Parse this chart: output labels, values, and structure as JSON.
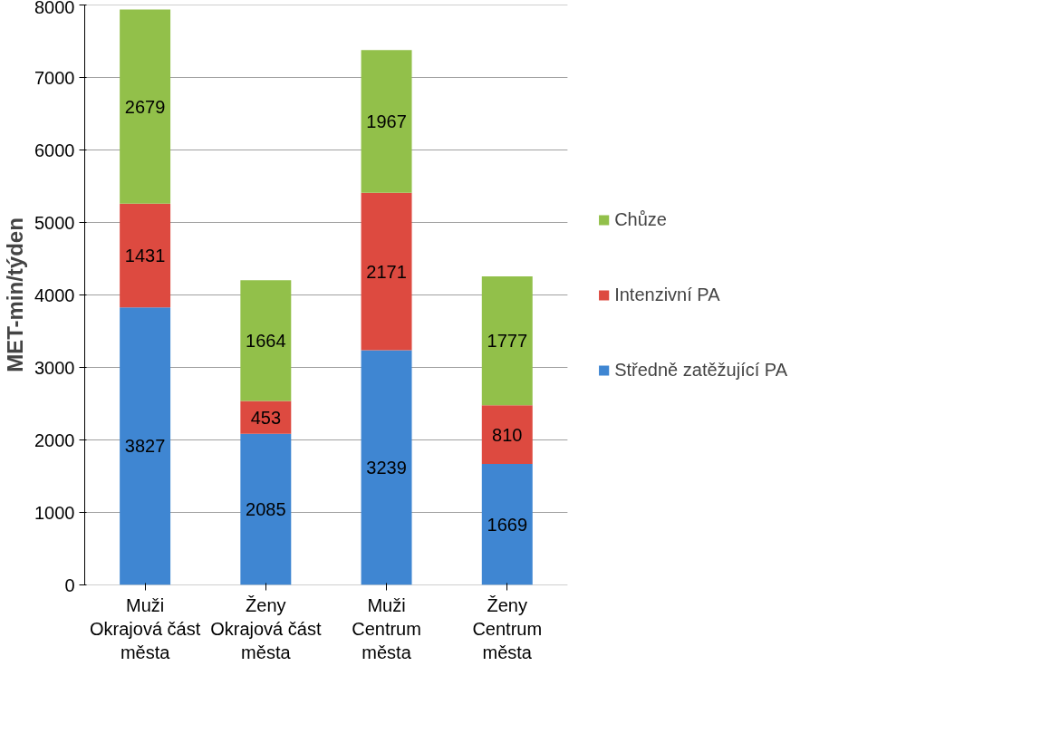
{
  "chart_data": {
    "type": "bar",
    "stacked": true,
    "ylabel": "MET-min/týden",
    "categories": [
      "Muži\nOkrajová část\nměsta",
      "Ženy\nOkrajová část\nměsta",
      "Muži\nCentrum\nměsta",
      "Ženy\nCentrum\nměsta"
    ],
    "series": [
      {
        "name": "Středně zatěžující PA",
        "color": "#3f86d2",
        "values": [
          3827,
          2085,
          3239,
          1669
        ]
      },
      {
        "name": "Intenzivní PA",
        "color": "#dd4a40",
        "values": [
          1431,
          453,
          2171,
          810
        ]
      },
      {
        "name": "Chůze",
        "color": "#92c04a",
        "values": [
          2679,
          1664,
          1967,
          1777
        ]
      }
    ],
    "ylim": [
      0,
      8000
    ],
    "yticks": [
      0,
      1000,
      2000,
      3000,
      4000,
      5000,
      6000,
      7000,
      8000
    ],
    "grid": "y",
    "legend": "right",
    "data_labels": true
  }
}
